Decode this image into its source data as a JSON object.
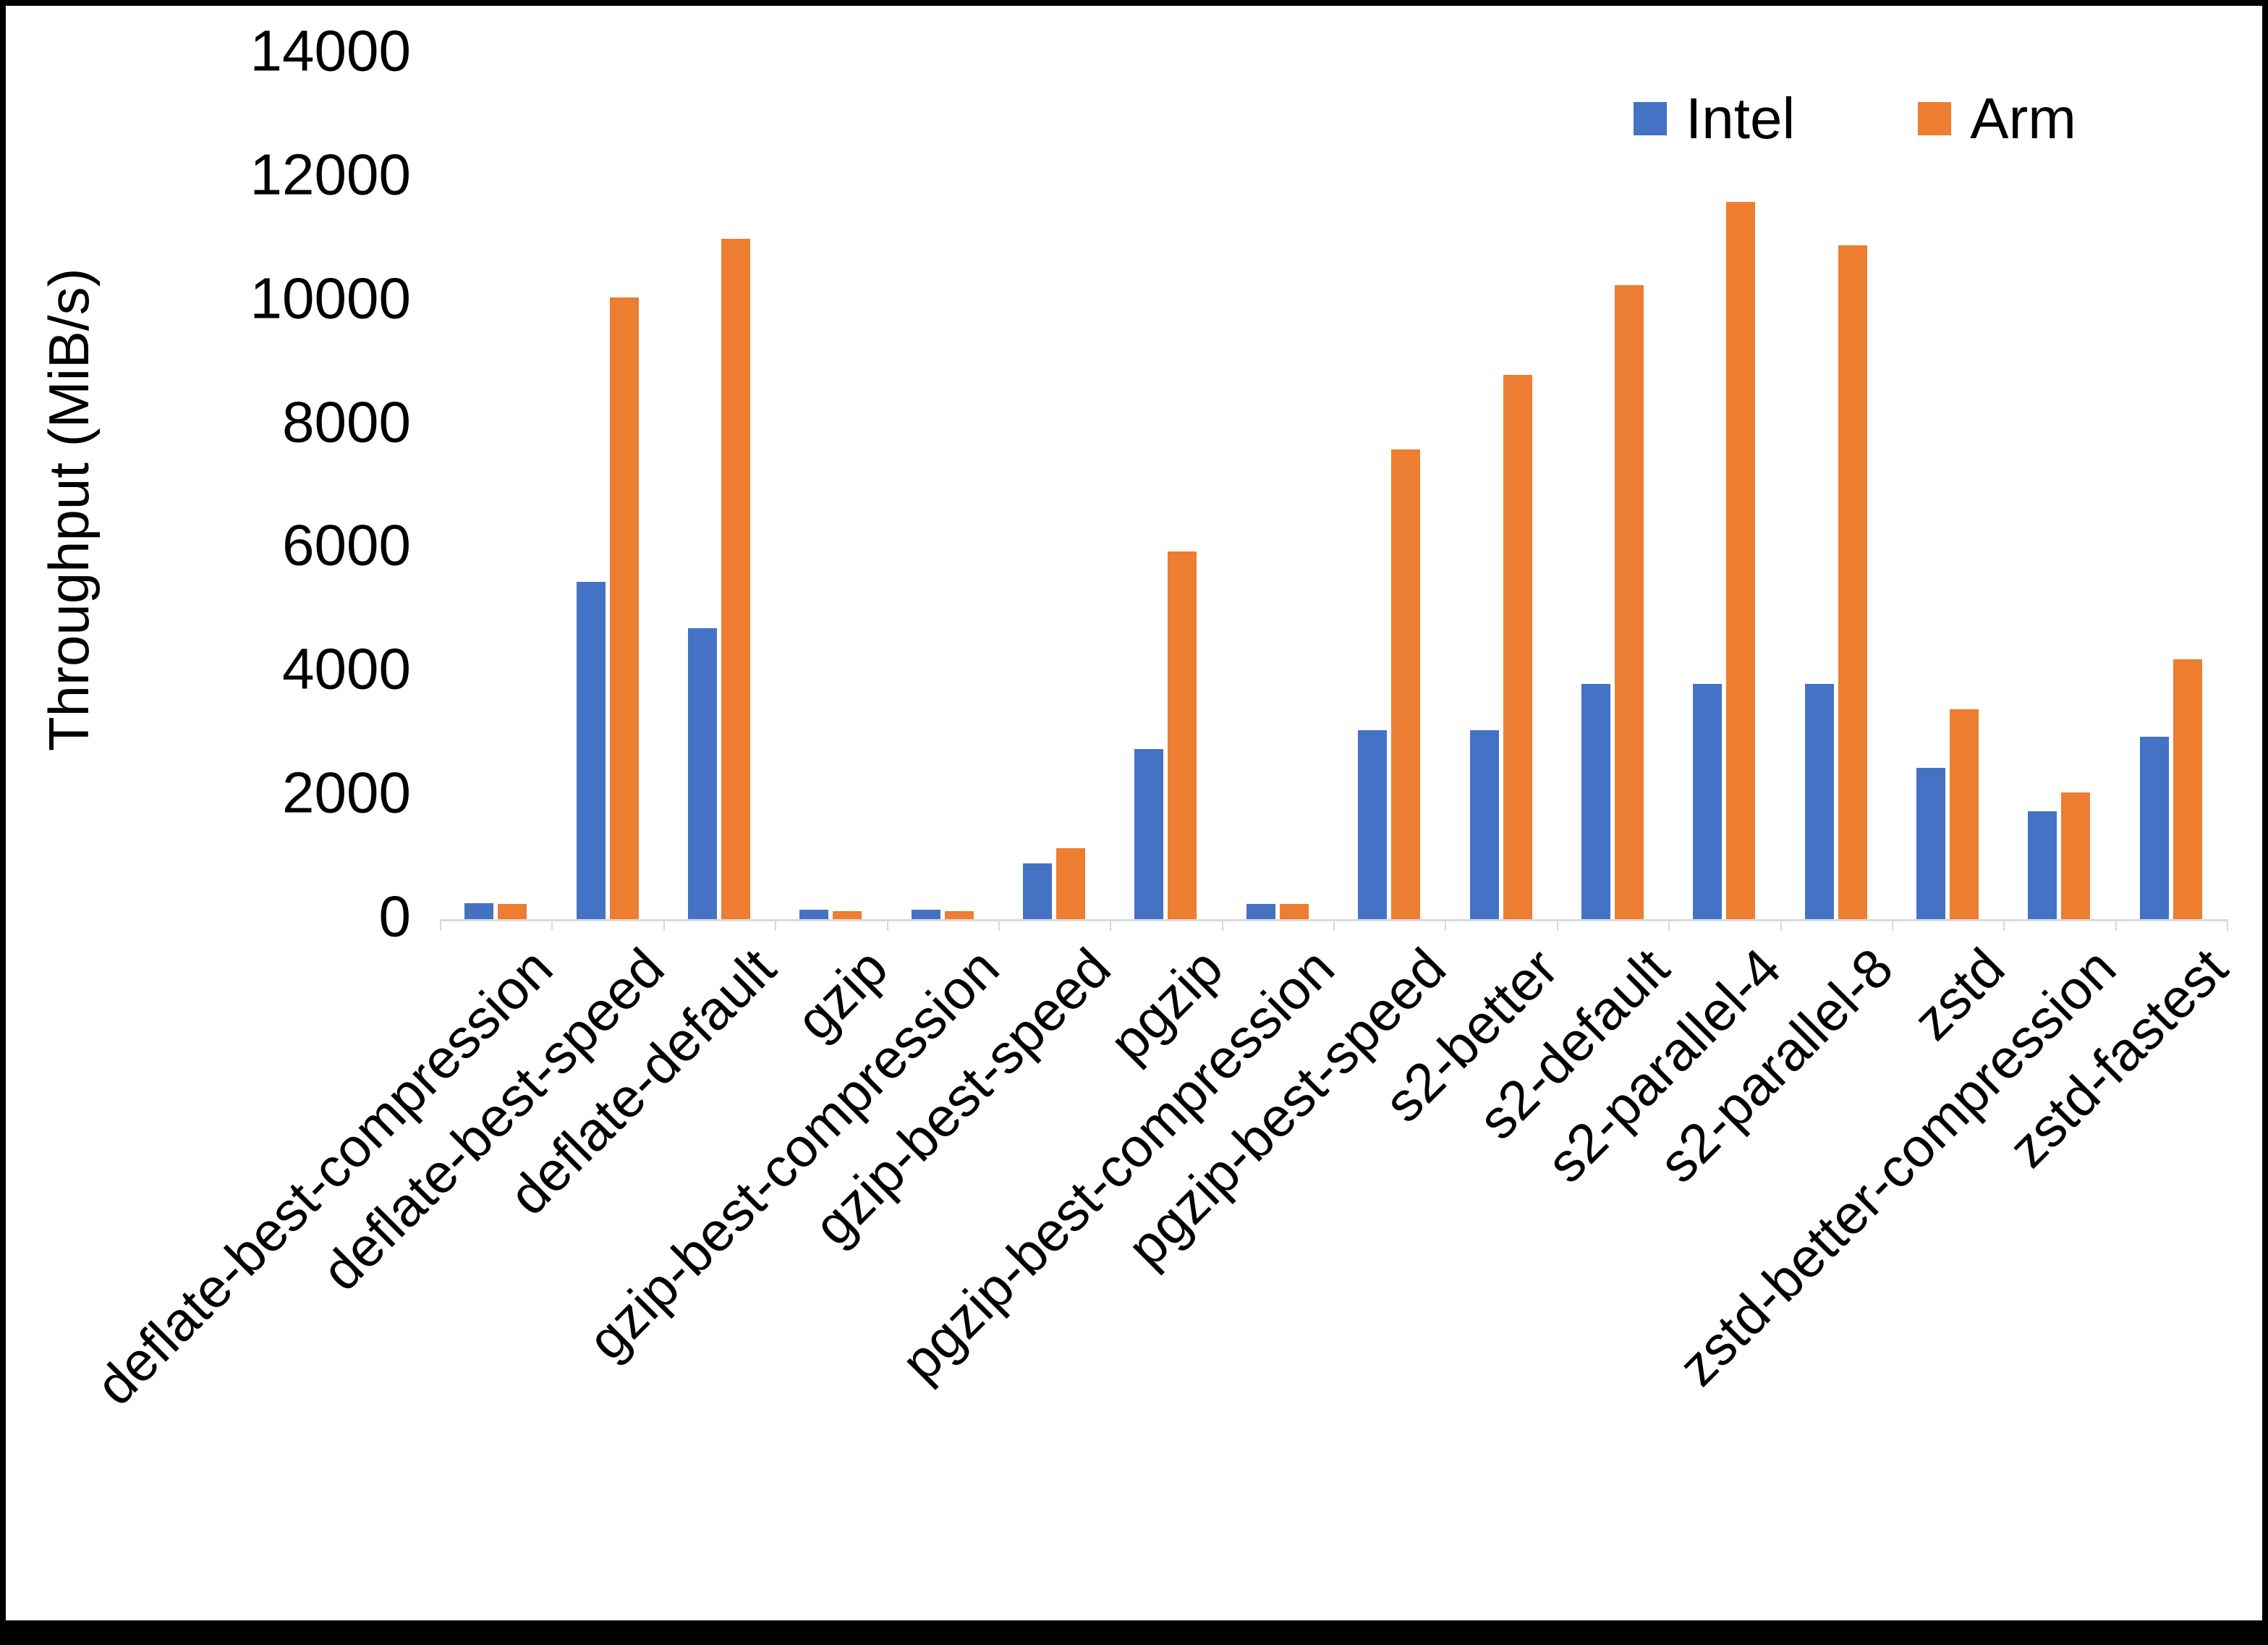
{
  "chart_data": {
    "type": "bar",
    "title": "",
    "xlabel": "",
    "ylabel": "Throughput (MiB/s)",
    "ylim": [
      0,
      14000
    ],
    "yticks": [
      0,
      2000,
      4000,
      6000,
      8000,
      10000,
      12000,
      14000
    ],
    "grid": false,
    "legend_position": "top-right",
    "categories": [
      "deflate-best-compression",
      "deflate-best-speed",
      "deflate-default",
      "gzip",
      "gzip-best-compression",
      "gzip-best-speed",
      "pgzip",
      "pgzip-best-compression",
      "pgzip-best-speed",
      "s2-better",
      "s2-default",
      "s2-parallel-4",
      "s2-parallel-8",
      "zstd",
      "zstd-better-compression",
      "zstd-fastest"
    ],
    "series": [
      {
        "name": "Intel",
        "color": "#4472C4",
        "values": [
          260,
          5450,
          4700,
          150,
          150,
          900,
          2750,
          250,
          3050,
          3050,
          3800,
          3800,
          3800,
          2450,
          1750,
          2950
        ]
      },
      {
        "name": "Arm",
        "color": "#ED7D31",
        "values": [
          250,
          10050,
          11000,
          130,
          130,
          1150,
          5950,
          250,
          7600,
          8800,
          10250,
          11600,
          10900,
          3400,
          2050,
          4200
        ]
      }
    ]
  }
}
